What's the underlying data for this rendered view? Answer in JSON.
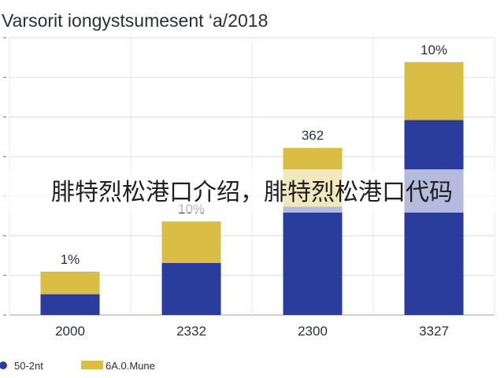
{
  "chart_data": {
    "type": "bar",
    "stacked": true,
    "title": "Varsorit iongystsumesent ‘a/2018",
    "categories": [
      "2000",
      "2332",
      "2300",
      "3327"
    ],
    "series": [
      {
        "name": "50-2nt",
        "values": [
          24,
          60,
          125,
          225
        ],
        "color": "#2a3c9c"
      },
      {
        "name": "6A.0.Mune",
        "values": [
          26,
          48,
          68,
          67
        ],
        "color": "#d9bd45"
      }
    ],
    "data_labels": [
      "1%",
      "10%",
      "362",
      "10%"
    ],
    "ylim": [
      0,
      320
    ],
    "grid": true,
    "legend": "bottom-left",
    "overlay_text": "腓特烈松港口介绍，腓特烈松港口代码"
  }
}
